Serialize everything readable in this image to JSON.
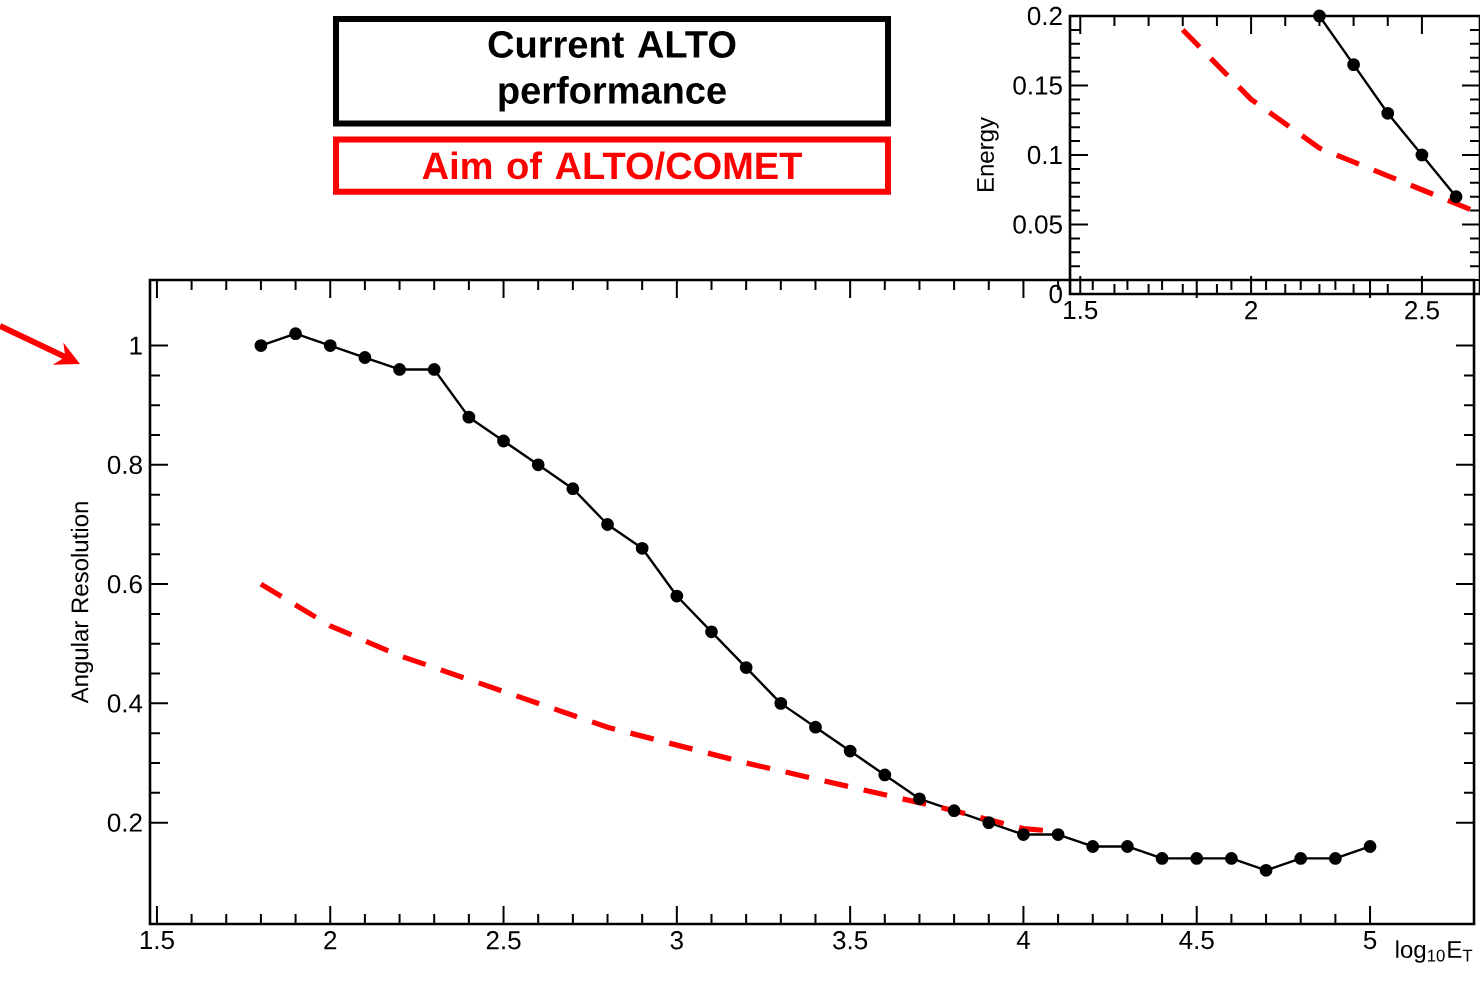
{
  "chart_data": [
    {
      "type": "line",
      "ylabel": "Angular Resolution",
      "xlabel": "log$_{10}$E$_{T}$",
      "xlim": [
        1.48,
        5.3
      ],
      "ylim": [
        0.03,
        1.11
      ],
      "xticks": [
        1.5,
        2,
        2.5,
        3,
        3.5,
        4,
        4.5,
        5
      ],
      "yticks": [
        0.2,
        0.4,
        0.6,
        0.8,
        1
      ],
      "legend": "top",
      "series": [
        {
          "name": "Current ALTO performance",
          "color": "#000000",
          "marker": "circle",
          "line_style": "solid",
          "x": [
            1.8,
            1.9,
            2.0,
            2.1,
            2.2,
            2.3,
            2.4,
            2.5,
            2.6,
            2.7,
            2.8,
            2.9,
            3.0,
            3.1,
            3.2,
            3.3,
            3.4,
            3.5,
            3.6,
            3.7,
            3.8,
            3.9,
            4.0,
            4.1,
            4.2,
            4.3,
            4.4,
            4.5,
            4.6,
            4.7,
            4.8,
            4.9,
            5.0
          ],
          "values": [
            1.0,
            1.02,
            1.0,
            0.98,
            0.96,
            0.96,
            0.88,
            0.84,
            0.8,
            0.76,
            0.7,
            0.66,
            0.58,
            0.52,
            0.46,
            0.4,
            0.36,
            0.32,
            0.28,
            0.24,
            0.22,
            0.2,
            0.18,
            0.18,
            0.16,
            0.16,
            0.14,
            0.14,
            0.14,
            0.12,
            0.14,
            0.14,
            0.16
          ]
        },
        {
          "name": "Aim of ALTO/COMET",
          "color": "#ff0000",
          "marker": "none",
          "line_style": "dashed",
          "x": [
            1.8,
            2.0,
            2.2,
            2.5,
            2.8,
            3.0,
            3.2,
            3.5,
            3.8,
            4.0,
            4.1
          ],
          "values": [
            0.6,
            0.53,
            0.48,
            0.42,
            0.36,
            0.33,
            0.3,
            0.26,
            0.22,
            0.19,
            0.185
          ]
        }
      ]
    },
    {
      "type": "line",
      "ylabel": "Energy",
      "xlim": [
        1.47,
        2.67
      ],
      "ylim": [
        0,
        0.2
      ],
      "xticks": [
        1.5,
        2,
        2.5
      ],
      "yticks": [
        0,
        0.05,
        0.1,
        0.15,
        0.2
      ],
      "series": [
        {
          "color": "#000000",
          "marker": "circle",
          "line_style": "solid",
          "x": [
            2.2,
            2.3,
            2.4,
            2.5,
            2.6
          ],
          "values": [
            0.2,
            0.165,
            0.13,
            0.1,
            0.07
          ]
        },
        {
          "color": "#ff0000",
          "marker": "none",
          "line_style": "dashed",
          "x": [
            1.8,
            2.0,
            2.2,
            2.4,
            2.6,
            2.67
          ],
          "values": [
            0.19,
            0.14,
            0.105,
            0.085,
            0.065,
            0.058
          ]
        }
      ]
    }
  ]
}
